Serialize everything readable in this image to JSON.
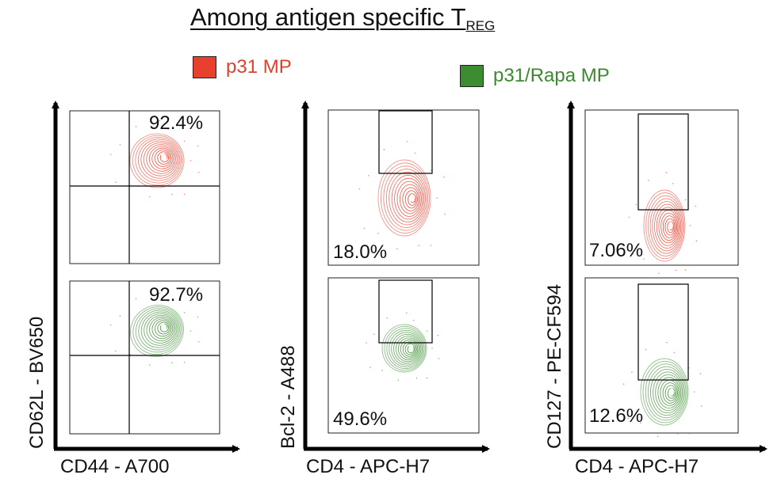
{
  "title": {
    "main": "Among antigen specific T",
    "sub": "REG"
  },
  "legend": [
    {
      "label": "p31 MP",
      "color": "#e8402f",
      "text_color": "#d9432e"
    },
    {
      "label": "p31/Rapa MP",
      "color": "#3d8c32",
      "text_color": "#3c8a2f"
    }
  ],
  "chart_data": [
    {
      "type": "contour",
      "ylabel": "CD62L - BV650",
      "xlabel": "CD44 - A700",
      "panels": [
        {
          "series": "p31 MP",
          "value": "92.4%",
          "gate": "quadrant-upper-right"
        },
        {
          "series": "p31/Rapa MP",
          "value": "92.7%",
          "gate": "quadrant-upper-right"
        }
      ]
    },
    {
      "type": "contour",
      "ylabel": "Bcl-2 - A488",
      "xlabel": "CD4 - APC-H7",
      "panels": [
        {
          "series": "p31 MP",
          "value": "18.0%",
          "gate": "rectangle-high-Bcl-2"
        },
        {
          "series": "p31/Rapa MP",
          "value": "49.6%",
          "gate": "rectangle-high-Bcl-2"
        }
      ]
    },
    {
      "type": "contour",
      "ylabel": "CD127 - PE-CF594",
      "xlabel": "CD4 - APC-H7",
      "panels": [
        {
          "series": "p31 MP",
          "value": "7.06%",
          "gate": "rectangle-high-CD127"
        },
        {
          "series": "p31/Rapa MP",
          "value": "12.6%",
          "gate": "rectangle-high-CD127"
        }
      ]
    }
  ]
}
